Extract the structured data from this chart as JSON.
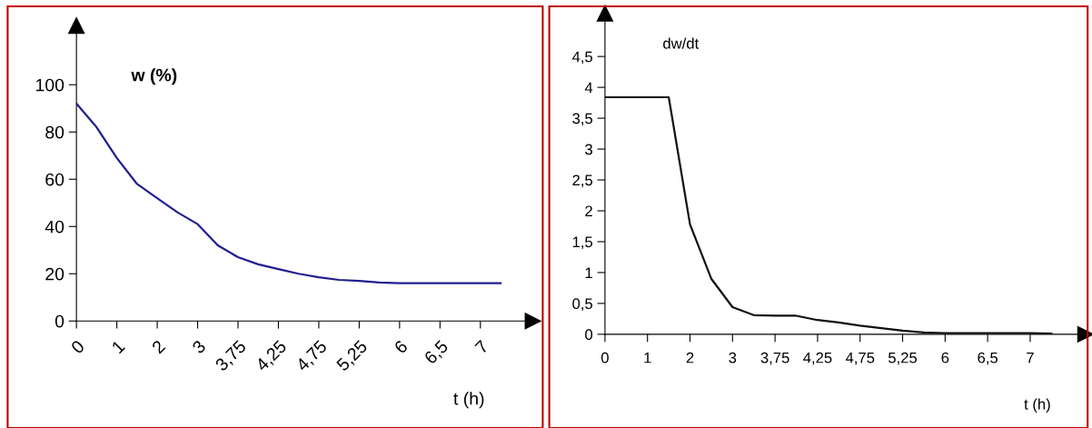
{
  "chart_data": [
    {
      "type": "line",
      "ylabel": "w (%)",
      "xlabel": "t (h)",
      "categories": [
        "0",
        null,
        "1",
        null,
        "2",
        null,
        "3",
        null,
        "3,75",
        null,
        "4,25",
        null,
        "4,75",
        null,
        "5,25",
        null,
        "6",
        null,
        "6,5",
        null,
        "7",
        null
      ],
      "series": [
        {
          "color": "#1f1f8f",
          "values": [
            92,
            82,
            69,
            58,
            52,
            46,
            41,
            32,
            27,
            24,
            22,
            20,
            18.5,
            17.4,
            17,
            16.3,
            16,
            16,
            16,
            16,
            16,
            16
          ]
        }
      ],
      "ylim": [
        0,
        125
      ],
      "yticks": [
        0,
        20,
        40,
        60,
        80,
        100
      ],
      "grid": false,
      "legend": false,
      "marker": "none",
      "line_style": "solid"
    },
    {
      "type": "line",
      "ylabel": "dw/dt",
      "xlabel": "t (h)",
      "categories": [
        "0",
        null,
        "1",
        null,
        "2",
        null,
        "3",
        null,
        "3,75",
        null,
        "4,25",
        null,
        "4,75",
        null,
        "5,25",
        null,
        "6",
        null,
        "6,5",
        null,
        "7",
        null
      ],
      "series": [
        {
          "color": "#111111",
          "values": [
            3.84,
            3.84,
            3.84,
            3.84,
            1.78,
            0.9,
            0.44,
            0.31,
            0.3,
            0.3,
            0.23,
            0.19,
            0.14,
            0.1,
            0.06,
            0.03,
            0.02,
            0.02,
            0.02,
            0.02,
            0.02,
            0.01
          ]
        }
      ],
      "ylim": [
        0,
        5.2
      ],
      "yticks": [
        0,
        {
          "value": 0.5,
          "label": "0,5"
        },
        1,
        {
          "value": 1.5,
          "label": "1,5"
        },
        2,
        {
          "value": 2.5,
          "label": "2,5"
        },
        3,
        {
          "value": 3.5,
          "label": "3,5"
        },
        4,
        {
          "value": 4.5,
          "label": "4,5"
        }
      ],
      "grid": false,
      "legend": false,
      "marker": "none",
      "line_style": "solid"
    }
  ]
}
